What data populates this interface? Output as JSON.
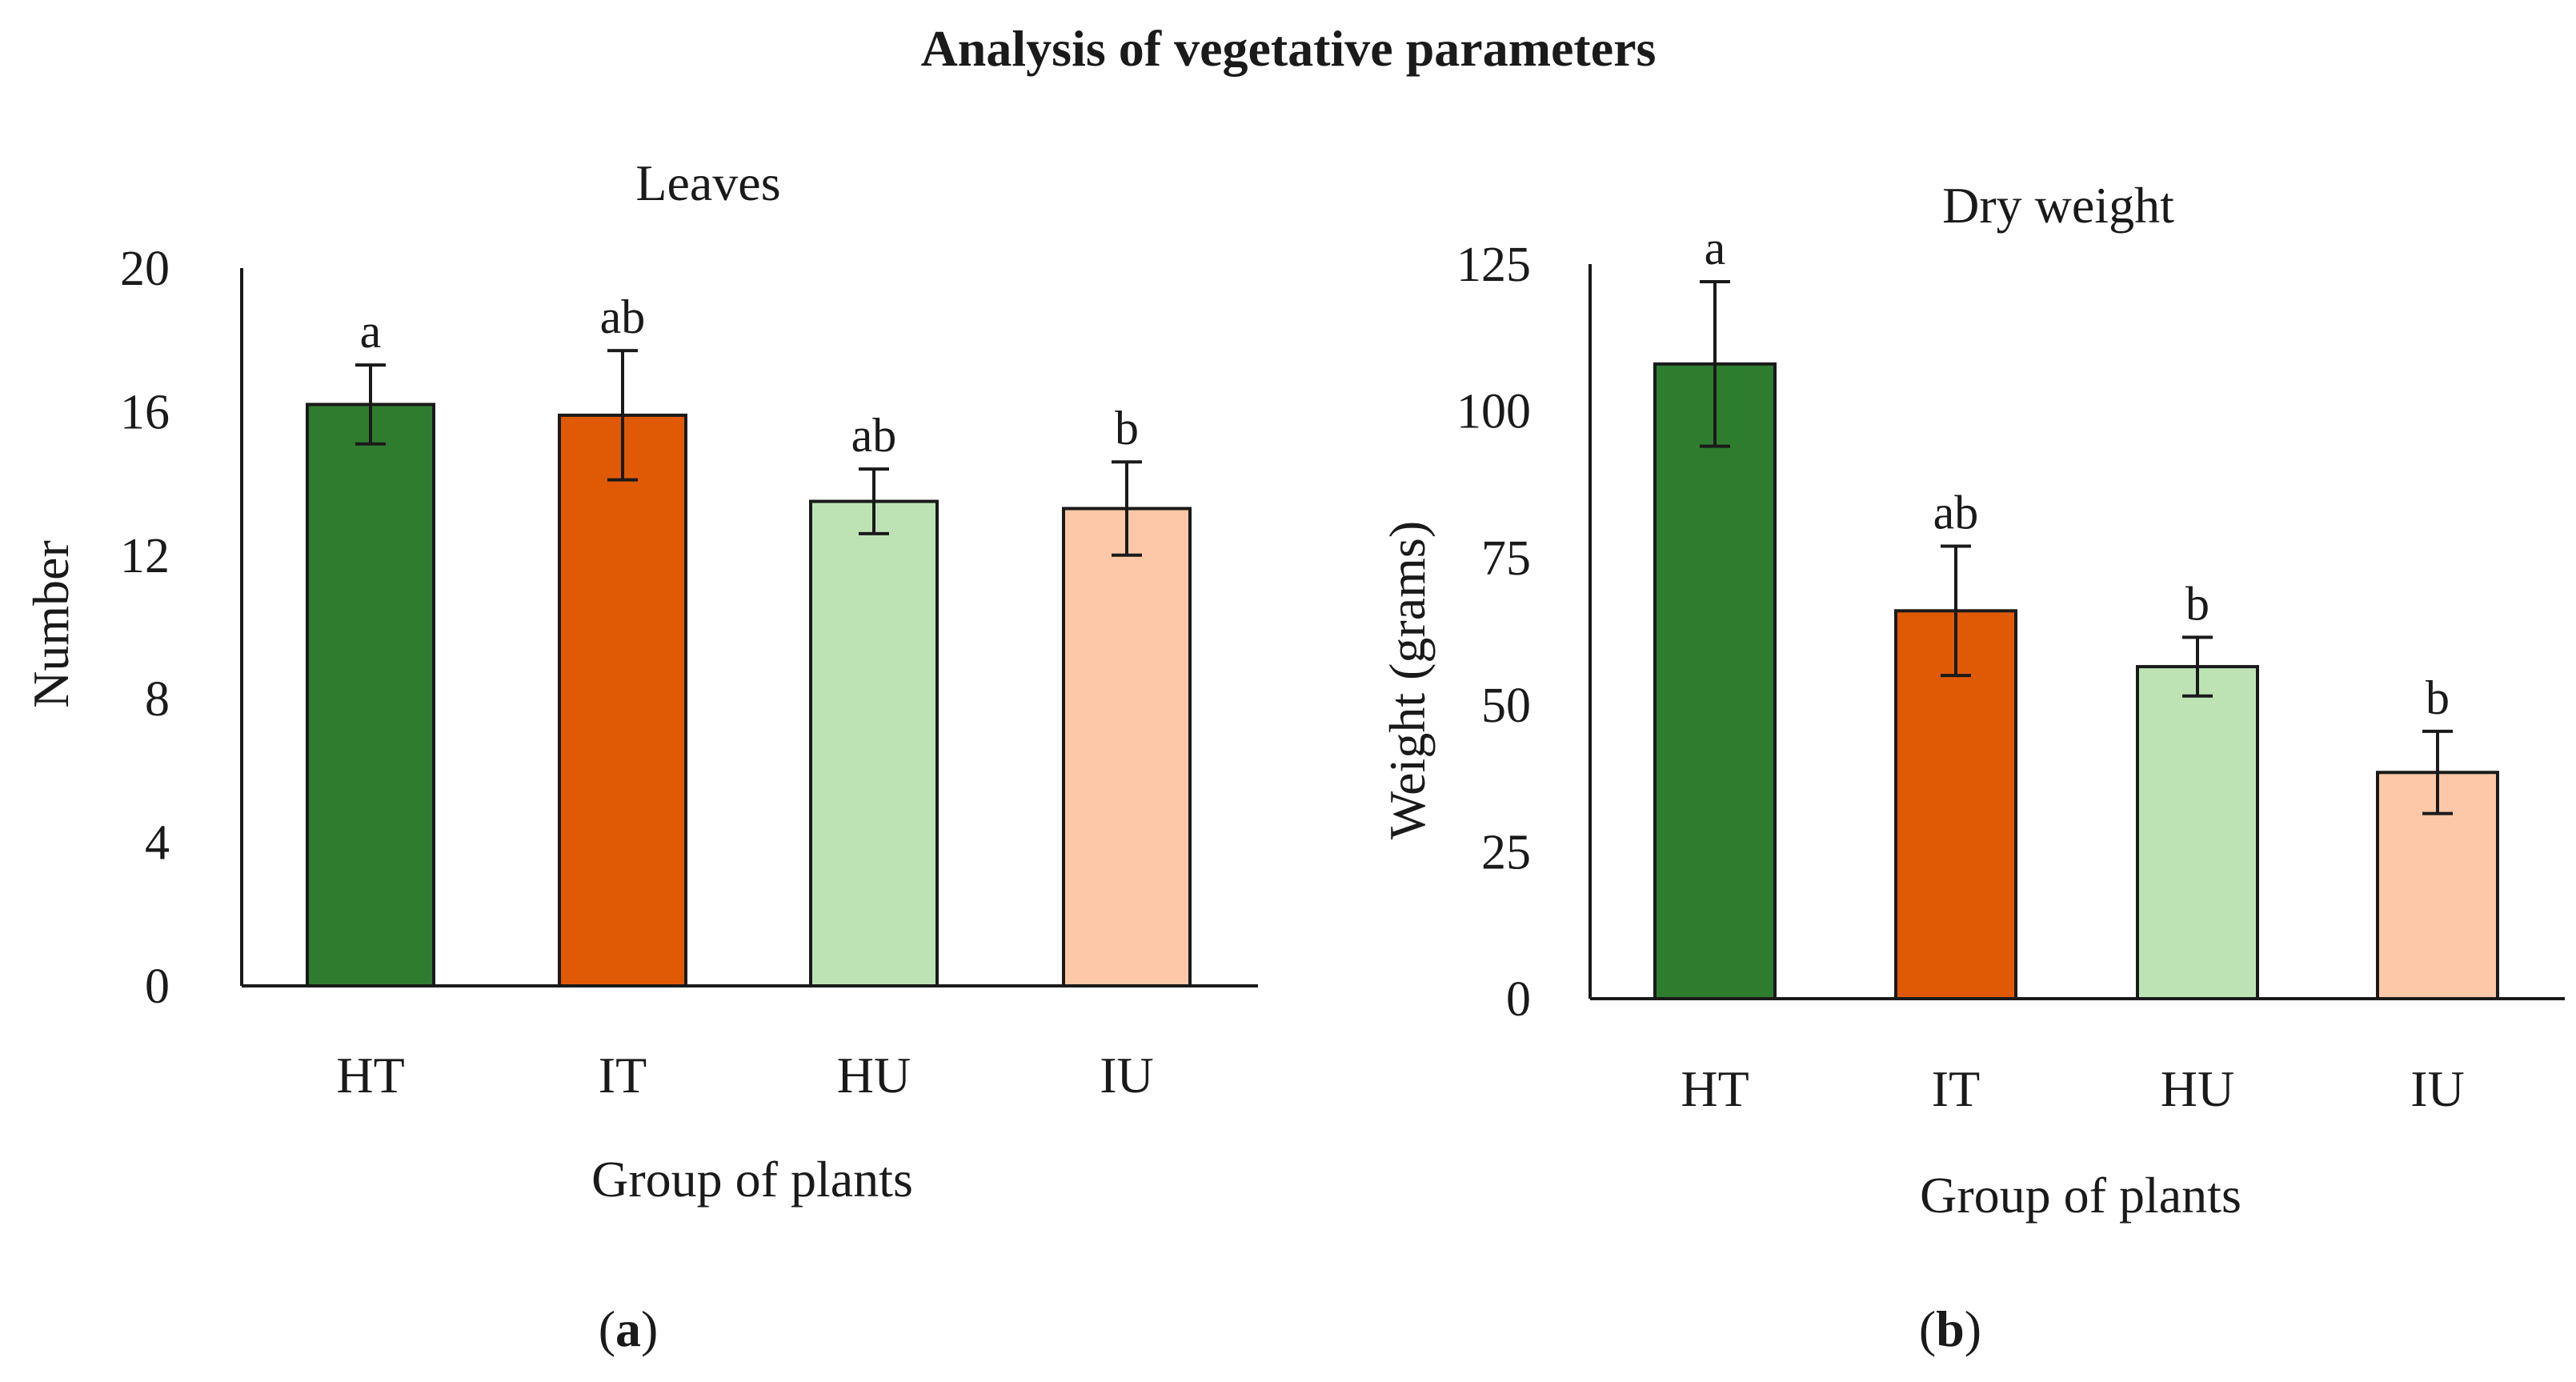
{
  "figure": {
    "title": "Analysis of vegetative parameters"
  },
  "chart_data": [
    {
      "type": "bar",
      "panel": "a",
      "title": "Leaves",
      "xlabel": "Group of plants",
      "ylabel": "Number",
      "categories": [
        "HT",
        "IT",
        "HU",
        "IU"
      ],
      "values": [
        16.2,
        15.9,
        13.5,
        13.3
      ],
      "errors": [
        1.1,
        1.8,
        0.9,
        1.3
      ],
      "significance": [
        "a",
        "ab",
        "ab",
        "b"
      ],
      "colors": [
        "#2e7d2e",
        "#e05a06",
        "#bde3b5",
        "#fcc8a8"
      ],
      "ylim": [
        0,
        20
      ],
      "yticks": [
        0,
        4,
        8,
        12,
        16,
        20
      ],
      "caption_label": "a"
    },
    {
      "type": "bar",
      "panel": "b",
      "title": "Dry weight",
      "xlabel": "Group of plants",
      "ylabel": "Weight (grams)",
      "categories": [
        "HT",
        "IT",
        "HU",
        "IU"
      ],
      "values": [
        108,
        66,
        56.5,
        38.5
      ],
      "errors": [
        14,
        11,
        5,
        7
      ],
      "significance": [
        "a",
        "ab",
        "b",
        "b"
      ],
      "colors": [
        "#2e7d2e",
        "#e05a06",
        "#bde3b5",
        "#fcc8a8"
      ],
      "ylim": [
        0,
        125
      ],
      "yticks": [
        0,
        25,
        50,
        75,
        100,
        125
      ],
      "caption_label": "b"
    }
  ]
}
